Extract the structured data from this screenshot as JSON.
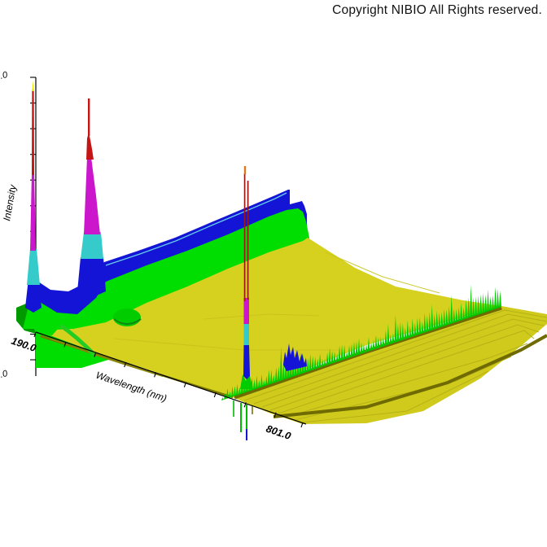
{
  "header": {
    "copyright": "Copyright NIBIO All Rights reserved."
  },
  "chart": {
    "y_axis_label": "Intensity",
    "x_axis_label": "Wavelength (nm)",
    "x_tick_first": "190.0",
    "x_tick_last": "801.0",
    "y_tick_top": ".0",
    "y_tick_bottom": ".0"
  },
  "chart_data": {
    "type": "3d-surface",
    "title": "",
    "description": "3D photodiode-array style surface plot of Intensity vs Wavelength (and an unlabeled receding third axis). Height is rainbow-banded by intensity.",
    "x_axis": {
      "label": "Wavelength (nm)",
      "range": [
        190.0,
        801.0
      ],
      "visible_tick_labels": [
        "190.0",
        "801.0"
      ]
    },
    "z_axis": {
      "label": "Intensity",
      "visible_tick_labels": [
        ".0",
        ".0"
      ],
      "tick_count_marks": 12
    },
    "depth_axis": {
      "label": "",
      "visible_tick_labels": []
    },
    "height_color_bands_low_to_high": [
      "#d6d11e",
      "#00dd00",
      "#1414d6",
      "#35cbcb",
      "#cc16cc",
      "#c41414",
      "#e6e600"
    ],
    "features": [
      {
        "name": "far-uv-peak-1",
        "approx_wavelength_nm": 195,
        "relative_height": 1.0,
        "description": "very narrow full-scale peak: yellow tip, red, magenta, cyan, blue, green bands top to bottom"
      },
      {
        "name": "uv-peak-2",
        "approx_wavelength_nm": 235,
        "relative_height": 0.9,
        "description": "tall peak with red cap over a widening magenta body, cyan and blue base"
      },
      {
        "name": "absorbance-plateau",
        "approx_wavelength_range_nm": [
          250,
          430
        ],
        "relative_height": 0.35,
        "description": "blue-topped green plateau rising toward ~430 nm then stepping down to the flat yellow baseline"
      },
      {
        "name": "narrow-emission-spike",
        "approx_wavelength_nm": 656,
        "relative_height": 0.65,
        "description": "hair-thin dark-red double spike with an orange tip passing through magenta/cyan/blue bands"
      },
      {
        "name": "baseline-noise-ridge",
        "description": "jagged bright-green noise ridge with a small blue cluster running along the long-wavelength / front-right edge above a dark olive stripe"
      },
      {
        "name": "negative-spikes",
        "description": "a few small green/blue spikes hanging below the front edge near the emission spike"
      }
    ],
    "grid": false,
    "legend": false,
    "background": "#ffffff"
  },
  "colors": {
    "surface_yellow": "#d6d11e",
    "strip_yellow": "#cfca1c",
    "dark_olive": "#6f6b02",
    "green": "#00dd00",
    "dark_green": "#009a00",
    "blue": "#1414d6",
    "cyan": "#35cbcb",
    "magenta": "#cc16cc",
    "red": "#c41414",
    "dark_red": "#9c1616",
    "orange_tip": "#e07818",
    "yellow_tip": "#e6e600",
    "axis": "#000000"
  }
}
